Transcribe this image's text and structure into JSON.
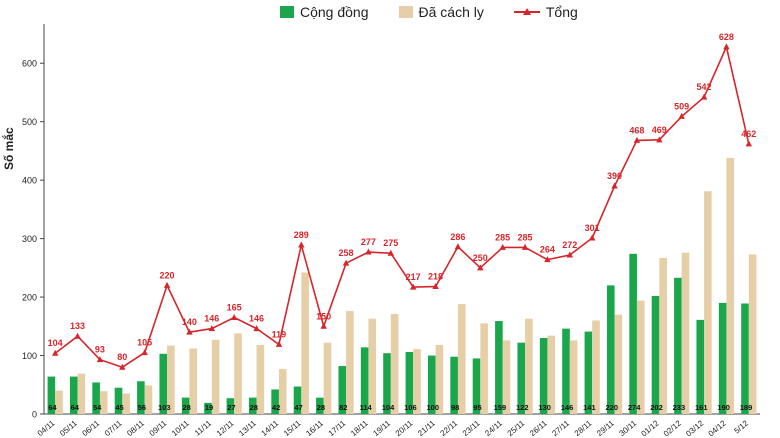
{
  "chart_data": {
    "type": "bar+line",
    "title": "",
    "ylabel": "Số mắc",
    "xlabel": "",
    "ylim": [
      0,
      650
    ],
    "yticks": [
      0,
      100,
      200,
      300,
      400,
      500,
      600
    ],
    "categories": [
      "04/11",
      "05/11",
      "06/11",
      "07/11",
      "08/11",
      "09/11",
      "10/11",
      "11/11",
      "12/11",
      "13/11",
      "14/11",
      "15/11",
      "16/11",
      "17/11",
      "18/11",
      "19/11",
      "20/11",
      "21/11",
      "22/11",
      "23/11",
      "24/11",
      "25/11",
      "26/11",
      "27/11",
      "28/11",
      "29/11",
      "30/11",
      "01/12",
      "02/12",
      "03/12",
      "04/12",
      "5/12"
    ],
    "series": [
      {
        "name": "Cộng đồng",
        "kind": "bar",
        "color": "#1aa64b",
        "values": [
          64,
          64,
          54,
          45,
          56,
          103,
          28,
          19,
          27,
          28,
          42,
          47,
          28,
          82,
          114,
          104,
          106,
          100,
          98,
          95,
          159,
          122,
          130,
          146,
          141,
          220,
          274,
          202,
          233,
          161,
          190,
          189
        ],
        "show_labels": true
      },
      {
        "name": "Đã cách ly",
        "kind": "bar",
        "color": "#e6cfa7",
        "values": [
          40,
          69,
          39,
          35,
          49,
          117,
          112,
          127,
          138,
          118,
          77,
          242,
          122,
          176,
          163,
          171,
          111,
          118,
          188,
          155,
          126,
          163,
          134,
          126,
          160,
          170,
          194,
          267,
          276,
          381,
          438,
          273
        ],
        "show_labels": false
      },
      {
        "name": "Tổng",
        "kind": "line",
        "color": "#d7262b",
        "values": [
          104,
          133,
          93,
          80,
          105,
          220,
          140,
          146,
          165,
          146,
          119,
          289,
          150,
          258,
          277,
          275,
          217,
          218,
          286,
          250,
          285,
          285,
          264,
          272,
          301,
          390,
          468,
          469,
          509,
          542,
          628,
          462
        ],
        "show_labels": true
      }
    ],
    "legend_position": "top-center",
    "grid": false
  }
}
